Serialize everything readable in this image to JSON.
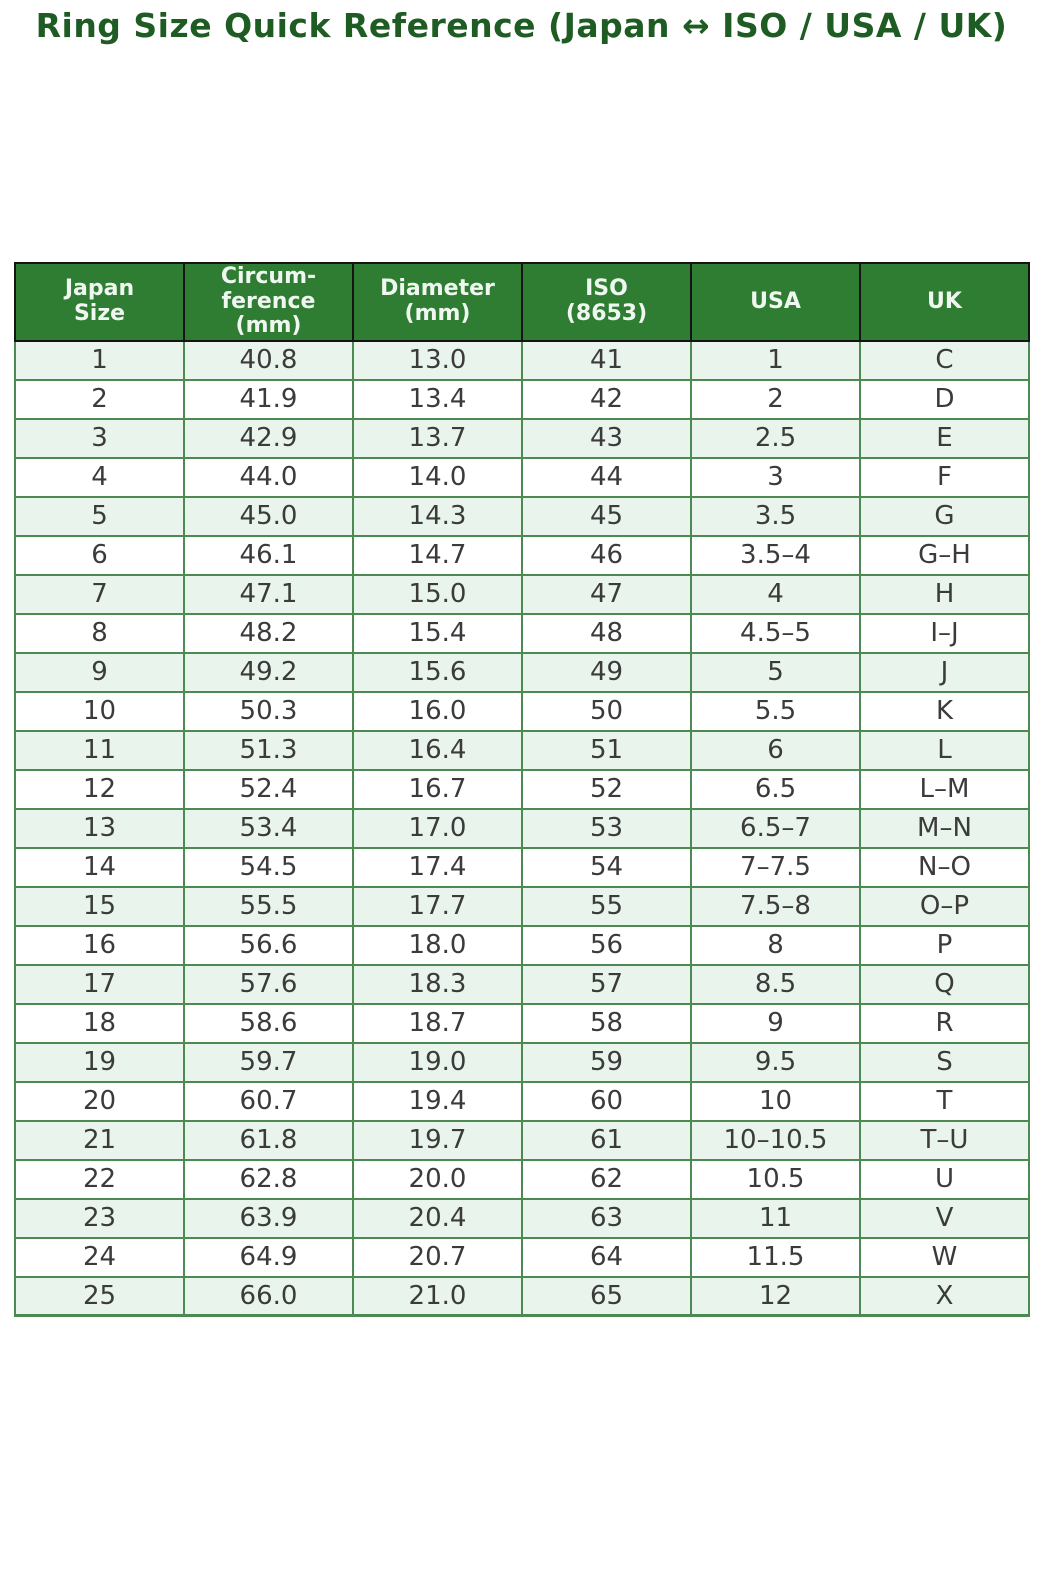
{
  "title": "Ring Size Quick Reference (Japan ↔ ISO / USA / UK)",
  "table": {
    "column_ids": [
      "japan-size",
      "circumference-mm",
      "diameter-mm",
      "iso-8653",
      "usa",
      "uk"
    ],
    "columns": [
      "Japan\nSize",
      "Circum-\nference\n(mm)",
      "Diameter\n(mm)",
      "ISO\n(8653)",
      "USA",
      "UK"
    ],
    "rows": [
      [
        "1",
        "40.8",
        "13.0",
        "41",
        "1",
        "C"
      ],
      [
        "2",
        "41.9",
        "13.4",
        "42",
        "2",
        "D"
      ],
      [
        "3",
        "42.9",
        "13.7",
        "43",
        "2.5",
        "E"
      ],
      [
        "4",
        "44.0",
        "14.0",
        "44",
        "3",
        "F"
      ],
      [
        "5",
        "45.0",
        "14.3",
        "45",
        "3.5",
        "G"
      ],
      [
        "6",
        "46.1",
        "14.7",
        "46",
        "3.5–4",
        "G–H"
      ],
      [
        "7",
        "47.1",
        "15.0",
        "47",
        "4",
        "H"
      ],
      [
        "8",
        "48.2",
        "15.4",
        "48",
        "4.5–5",
        "I–J"
      ],
      [
        "9",
        "49.2",
        "15.6",
        "49",
        "5",
        "J"
      ],
      [
        "10",
        "50.3",
        "16.0",
        "50",
        "5.5",
        "K"
      ],
      [
        "11",
        "51.3",
        "16.4",
        "51",
        "6",
        "L"
      ],
      [
        "12",
        "52.4",
        "16.7",
        "52",
        "6.5",
        "L–M"
      ],
      [
        "13",
        "53.4",
        "17.0",
        "53",
        "6.5–7",
        "M–N"
      ],
      [
        "14",
        "54.5",
        "17.4",
        "54",
        "7–7.5",
        "N–O"
      ],
      [
        "15",
        "55.5",
        "17.7",
        "55",
        "7.5–8",
        "O–P"
      ],
      [
        "16",
        "56.6",
        "18.0",
        "56",
        "8",
        "P"
      ],
      [
        "17",
        "57.6",
        "18.3",
        "57",
        "8.5",
        "Q"
      ],
      [
        "18",
        "58.6",
        "18.7",
        "58",
        "9",
        "R"
      ],
      [
        "19",
        "59.7",
        "19.0",
        "59",
        "9.5",
        "S"
      ],
      [
        "20",
        "60.7",
        "19.4",
        "60",
        "10",
        "T"
      ],
      [
        "21",
        "61.8",
        "19.7",
        "61",
        "10–10.5",
        "T–U"
      ],
      [
        "22",
        "62.8",
        "20.0",
        "62",
        "10.5",
        "U"
      ],
      [
        "23",
        "63.9",
        "20.4",
        "63",
        "11",
        "V"
      ],
      [
        "24",
        "64.9",
        "20.7",
        "64",
        "11.5",
        "W"
      ],
      [
        "25",
        "66.0",
        "21.0",
        "65",
        "12",
        "X"
      ]
    ]
  },
  "colors": {
    "title_color": "#1e5c24",
    "header_bg": "#2e7d32",
    "header_text": "#f0f7f0",
    "header_border": "#141414",
    "body_border": "#4d8a52",
    "row_alt_bg": "#e9f4ec",
    "row_bg": "#ffffff",
    "body_text": "#3b3b3b"
  }
}
